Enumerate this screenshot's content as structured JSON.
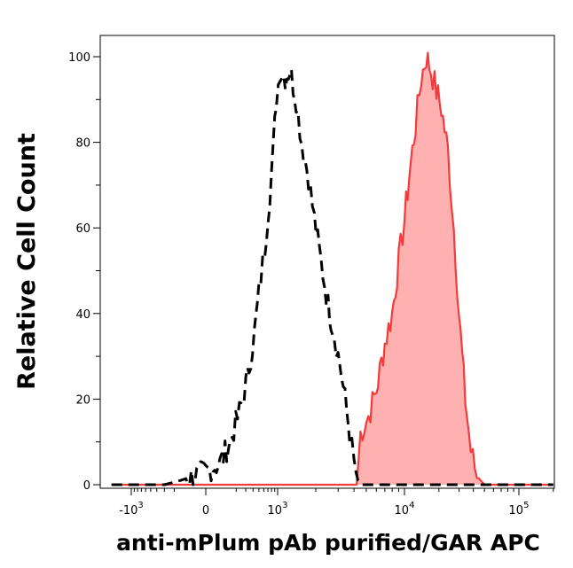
{
  "chart_data": {
    "type": "area",
    "title": "",
    "xlabel": "anti-mPlum pAb purified/GAR APC",
    "ylabel": "Relative Cell Count",
    "x_scale": "biexponential (logicle)",
    "ylim": [
      0,
      104
    ],
    "y_ticks": [
      0,
      20,
      40,
      60,
      80,
      100
    ],
    "x_ticks": [
      {
        "base": "-10",
        "exp": "3",
        "value": -1000
      },
      {
        "base": "0",
        "exp": "",
        "value": 0
      },
      {
        "base": "10",
        "exp": "3",
        "value": 1000
      },
      {
        "base": "10",
        "exp": "4",
        "value": 10000
      },
      {
        "base": "10",
        "exp": "5",
        "value": 100000
      }
    ],
    "grid": false,
    "legend": "none",
    "series": [
      {
        "style": "dashed",
        "color": "#000000",
        "fill": "none",
        "points": [
          [
            -2000,
            0
          ],
          [
            -300,
            0
          ],
          [
            -150,
            1
          ],
          [
            0,
            3
          ],
          [
            80,
            5
          ],
          [
            150,
            10
          ],
          [
            230,
            17
          ],
          [
            320,
            25
          ],
          [
            420,
            35
          ],
          [
            500,
            45
          ],
          [
            620,
            55
          ],
          [
            750,
            68
          ],
          [
            850,
            78
          ],
          [
            950,
            90
          ],
          [
            1050,
            97
          ],
          [
            1150,
            95
          ],
          [
            1250,
            97
          ],
          [
            1400,
            90
          ],
          [
            1550,
            80
          ],
          [
            1750,
            72
          ],
          [
            1950,
            62
          ],
          [
            2200,
            52
          ],
          [
            2500,
            42
          ],
          [
            2800,
            35
          ],
          [
            3100,
            28
          ],
          [
            3400,
            20
          ],
          [
            3700,
            12
          ],
          [
            4000,
            5
          ],
          [
            4300,
            1
          ],
          [
            4600,
            0
          ],
          [
            200000,
            0
          ]
        ]
      },
      {
        "style": "solid",
        "color": "#f03c3c",
        "fill": "#ffb0b0",
        "points": [
          [
            -2000,
            0
          ],
          [
            4200,
            0
          ],
          [
            4500,
            12
          ],
          [
            5200,
            16
          ],
          [
            6000,
            22
          ],
          [
            7000,
            33
          ],
          [
            8000,
            40
          ],
          [
            9000,
            52
          ],
          [
            10000,
            62
          ],
          [
            11000,
            72
          ],
          [
            12500,
            84
          ],
          [
            14000,
            95
          ],
          [
            15500,
            100
          ],
          [
            17000,
            97
          ],
          [
            19000,
            92
          ],
          [
            21000,
            88
          ],
          [
            24000,
            78
          ],
          [
            27000,
            60
          ],
          [
            30000,
            40
          ],
          [
            34000,
            20
          ],
          [
            38000,
            8
          ],
          [
            43000,
            2
          ],
          [
            50000,
            0
          ],
          [
            200000,
            0
          ]
        ]
      }
    ]
  }
}
